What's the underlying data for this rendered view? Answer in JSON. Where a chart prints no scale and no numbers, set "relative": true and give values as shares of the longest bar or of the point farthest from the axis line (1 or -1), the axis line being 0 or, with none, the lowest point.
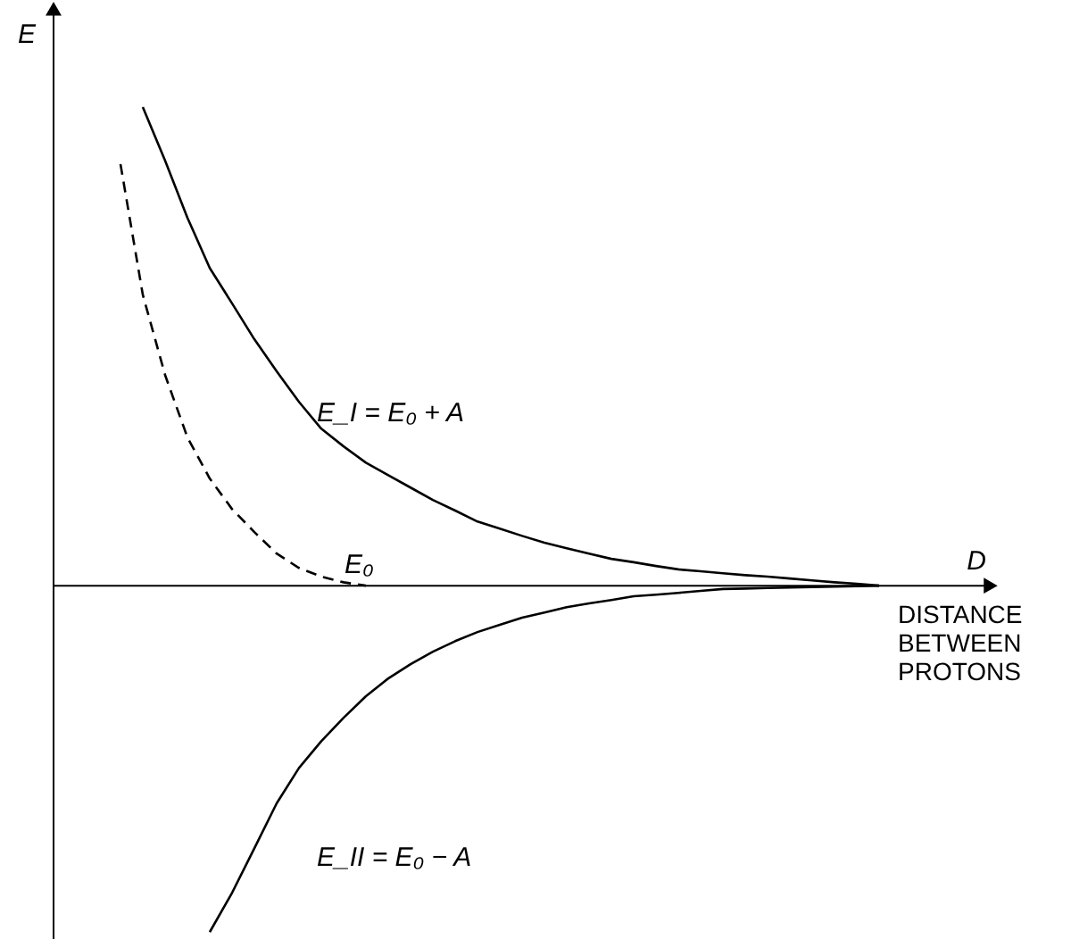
{
  "chart_data": {
    "type": "line",
    "relative": true,
    "ylabel": "E",
    "xlabel": "D",
    "marker": "none",
    "annotations": [
      "DISTANCE BETWEEN PROTONS",
      "E₀"
    ],
    "categories": [
      null,
      null,
      null,
      null,
      null,
      null,
      null,
      null,
      null,
      null,
      null,
      null,
      null,
      null,
      null,
      null,
      null,
      null,
      null,
      null,
      null,
      null,
      null,
      null,
      null,
      null,
      null,
      null,
      null,
      null,
      null,
      null,
      null,
      null,
      null,
      null,
      null,
      null,
      null,
      null,
      null,
      null,
      null
    ],
    "series": [
      {
        "name": "E_I = E₀ + A",
        "color": "#000000",
        "line_style": "solid",
        "values": [
          null,
          null,
          null,
          null,
          1.0,
          0.888,
          0.769,
          0.664,
          0.59,
          0.515,
          0.448,
          0.384,
          0.328,
          0.291,
          0.257,
          0.231,
          0.205,
          0.179,
          0.157,
          0.134,
          0.119,
          0.104,
          0.09,
          0.078,
          0.067,
          0.056,
          0.049,
          0.041,
          0.034,
          0.03,
          0.026,
          0.022,
          0.019,
          0.015,
          0.011,
          0.007,
          0.004,
          0,
          null,
          null,
          null,
          null,
          null
        ]
      },
      {
        "name": "E_II = E₀ − A",
        "color": "#000000",
        "line_style": "solid",
        "values": [
          null,
          null,
          null,
          null,
          null,
          null,
          null,
          -0.724,
          -0.642,
          -0.549,
          -0.455,
          -0.381,
          -0.325,
          -0.276,
          -0.231,
          -0.194,
          -0.164,
          -0.138,
          -0.116,
          -0.097,
          -0.082,
          -0.067,
          -0.056,
          -0.045,
          -0.037,
          -0.03,
          -0.022,
          -0.019,
          -0.015,
          -0.011,
          -0.007,
          -0.006,
          -0.005,
          -0.004,
          -0.003,
          -0.002,
          -0.001,
          0,
          null,
          null,
          null,
          null,
          null
        ]
      },
      {
        "color": "#000000",
        "line_style": "dashed",
        "values": [
          null,
          null,
          null,
          0.881,
          0.608,
          0.44,
          0.31,
          0.224,
          0.16,
          0.112,
          0.067,
          0.037,
          0.019,
          0.007,
          0,
          null,
          null,
          null,
          null,
          null,
          null,
          null,
          null,
          null,
          null,
          null,
          null,
          null,
          null,
          null,
          null,
          null,
          null,
          null,
          null,
          null,
          null,
          null,
          null,
          null,
          null,
          null,
          null
        ]
      }
    ]
  }
}
